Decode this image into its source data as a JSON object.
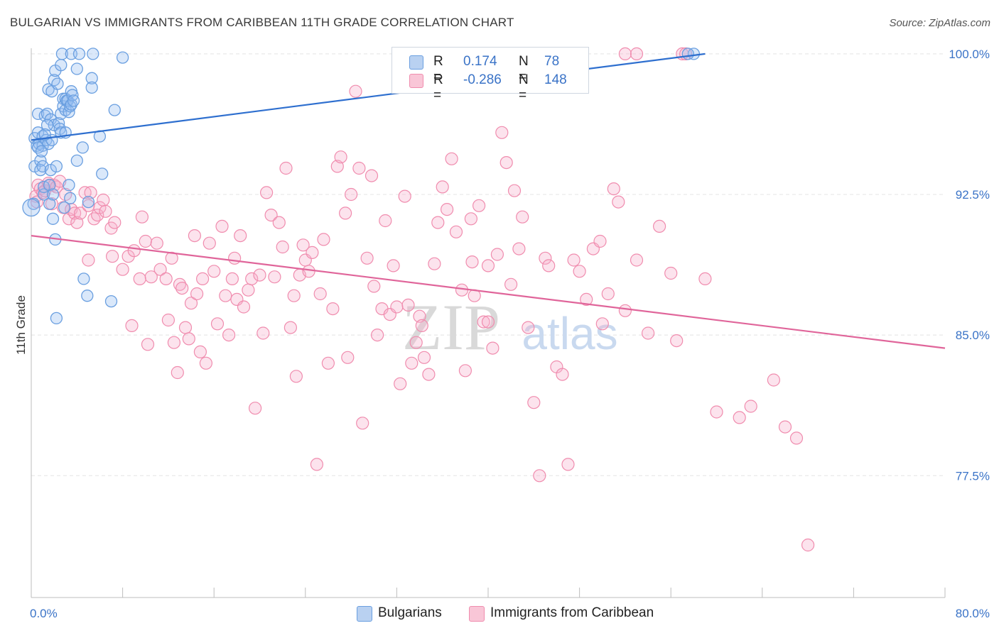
{
  "title": "BULGARIAN VS IMMIGRANTS FROM CARIBBEAN 11TH GRADE CORRELATION CHART",
  "source": "Source: ZipAtlas.com",
  "watermark": {
    "zip": "ZIP",
    "atlas": "atlas"
  },
  "legend": {
    "r_label": "R =",
    "n_label": "N =",
    "rows": [
      {
        "r": "0.174",
        "n": "78"
      },
      {
        "r": "-0.286",
        "n": "148"
      }
    ]
  },
  "chart_data": {
    "type": "scatter",
    "title": "BULGARIAN VS IMMIGRANTS FROM CARIBBEAN 11TH GRADE CORRELATION CHART",
    "xlabel": "",
    "ylabel": "11th Grade",
    "xlim": [
      0,
      80
    ],
    "ylim": [
      71.0,
      100.6
    ],
    "x_tick_labels": [
      "0.0%",
      "80.0%"
    ],
    "y_ticks": [
      77.5,
      85.0,
      92.5,
      100.0
    ],
    "y_tick_labels": [
      "77.5%",
      "85.0%",
      "92.5%",
      "100.0%"
    ],
    "grid": true,
    "legend_position": "top-center",
    "colors": {
      "blue": "#6a9fe0",
      "pink": "#f08cae",
      "blue_line": "#2e6fcf",
      "pink_line": "#e0659a",
      "tick_text": "#3a73c7"
    },
    "series": [
      {
        "name": "Bulgarians",
        "R": 0.174,
        "N": 78,
        "trend": {
          "x": [
            0,
            59
          ],
          "y": [
            95.4,
            100.0
          ]
        },
        "points": [
          [
            0.3,
            95.5
          ],
          [
            0.3,
            94.0
          ],
          [
            0.5,
            95.1
          ],
          [
            0.6,
            96.8
          ],
          [
            0.6,
            95.8
          ],
          [
            0.7,
            95.2
          ],
          [
            0.8,
            94.3
          ],
          [
            0.8,
            93.8
          ],
          [
            1.0,
            95.6
          ],
          [
            1.0,
            95.1
          ],
          [
            1.0,
            94.0
          ],
          [
            1.1,
            92.5
          ],
          [
            1.1,
            92.9
          ],
          [
            1.2,
            96.7
          ],
          [
            1.3,
            95.4
          ],
          [
            1.4,
            96.8
          ],
          [
            1.5,
            98.1
          ],
          [
            1.5,
            95.2
          ],
          [
            1.6,
            92.0
          ],
          [
            1.6,
            93.0
          ],
          [
            1.7,
            96.5
          ],
          [
            1.7,
            93.8
          ],
          [
            1.8,
            98.0
          ],
          [
            1.8,
            95.4
          ],
          [
            1.9,
            91.2
          ],
          [
            1.9,
            92.5
          ],
          [
            2.0,
            98.6
          ],
          [
            2.0,
            96.2
          ],
          [
            2.1,
            99.1
          ],
          [
            2.1,
            90.1
          ],
          [
            2.2,
            85.9
          ],
          [
            2.3,
            98.4
          ],
          [
            2.4,
            96.3
          ],
          [
            2.5,
            96.0
          ],
          [
            2.6,
            99.4
          ],
          [
            2.6,
            96.8
          ],
          [
            2.6,
            95.8
          ],
          [
            2.7,
            100.0
          ],
          [
            2.8,
            97.6
          ],
          [
            2.8,
            97.2
          ],
          [
            2.9,
            91.8
          ],
          [
            3.0,
            97.0
          ],
          [
            3.0,
            97.6
          ],
          [
            3.1,
            97.5
          ],
          [
            3.2,
            97.5
          ],
          [
            3.3,
            93.0
          ],
          [
            3.3,
            96.9
          ],
          [
            3.4,
            97.2
          ],
          [
            3.4,
            92.3
          ],
          [
            3.5,
            97.3
          ],
          [
            3.5,
            100.0
          ],
          [
            3.5,
            98.0
          ],
          [
            3.6,
            97.8
          ],
          [
            3.7,
            97.5
          ],
          [
            4.0,
            99.2
          ],
          [
            4.0,
            94.3
          ],
          [
            4.2,
            100.0
          ],
          [
            4.5,
            95.0
          ],
          [
            4.6,
            88.0
          ],
          [
            4.9,
            87.1
          ],
          [
            5.0,
            92.1
          ],
          [
            5.3,
            98.7
          ],
          [
            5.3,
            98.2
          ],
          [
            5.4,
            100.0
          ],
          [
            6.0,
            95.6
          ],
          [
            6.2,
            93.6
          ],
          [
            7.0,
            86.8
          ],
          [
            7.3,
            97.0
          ],
          [
            8.0,
            99.8
          ],
          [
            0.2,
            92.0
          ],
          [
            0.6,
            95.0
          ],
          [
            1.4,
            96.2
          ],
          [
            2.2,
            94.0
          ],
          [
            3.0,
            95.8
          ],
          [
            58.0,
            100.0
          ],
          [
            57.5,
            100.0
          ],
          [
            0.9,
            94.8
          ],
          [
            1.2,
            95.7
          ]
        ]
      },
      {
        "name": "Immigrants from Caribbean",
        "R": -0.286,
        "N": 148,
        "trend": {
          "x": [
            0,
            80
          ],
          "y": [
            90.3,
            84.3
          ]
        },
        "points": [
          [
            0.4,
            92.4
          ],
          [
            0.5,
            92.1
          ],
          [
            0.6,
            93.0
          ],
          [
            0.8,
            92.8
          ],
          [
            1.0,
            92.6
          ],
          [
            1.2,
            92.7
          ],
          [
            1.5,
            93.1
          ],
          [
            1.6,
            93.0
          ],
          [
            1.8,
            92.0
          ],
          [
            2.0,
            93.0
          ],
          [
            2.2,
            92.9
          ],
          [
            2.5,
            93.2
          ],
          [
            2.8,
            91.8
          ],
          [
            3.0,
            92.5
          ],
          [
            3.3,
            91.2
          ],
          [
            3.5,
            91.7
          ],
          [
            3.8,
            91.5
          ],
          [
            4.0,
            91.0
          ],
          [
            4.3,
            91.5
          ],
          [
            4.7,
            92.6
          ],
          [
            5.0,
            91.9
          ],
          [
            5.0,
            89.0
          ],
          [
            5.2,
            92.6
          ],
          [
            5.5,
            91.2
          ],
          [
            5.8,
            91.4
          ],
          [
            6.0,
            91.8
          ],
          [
            6.3,
            92.2
          ],
          [
            6.5,
            91.6
          ],
          [
            7.0,
            90.7
          ],
          [
            7.1,
            89.2
          ],
          [
            7.3,
            91.0
          ],
          [
            8.0,
            88.5
          ],
          [
            8.5,
            89.2
          ],
          [
            8.8,
            85.5
          ],
          [
            9.0,
            89.5
          ],
          [
            9.5,
            88.0
          ],
          [
            9.7,
            91.3
          ],
          [
            10.0,
            90.0
          ],
          [
            10.2,
            84.5
          ],
          [
            10.5,
            88.1
          ],
          [
            11.0,
            89.9
          ],
          [
            11.3,
            88.5
          ],
          [
            11.8,
            88.0
          ],
          [
            12.0,
            85.8
          ],
          [
            12.3,
            89.1
          ],
          [
            12.5,
            84.6
          ],
          [
            12.8,
            83.0
          ],
          [
            13.0,
            87.7
          ],
          [
            13.2,
            87.5
          ],
          [
            13.5,
            85.4
          ],
          [
            13.8,
            84.8
          ],
          [
            14.0,
            86.7
          ],
          [
            14.3,
            90.3
          ],
          [
            14.5,
            87.2
          ],
          [
            14.8,
            84.1
          ],
          [
            15.0,
            88.0
          ],
          [
            15.3,
            83.5
          ],
          [
            15.6,
            89.9
          ],
          [
            16.0,
            88.4
          ],
          [
            16.3,
            85.6
          ],
          [
            16.7,
            90.8
          ],
          [
            17.0,
            87.1
          ],
          [
            17.3,
            85.0
          ],
          [
            17.6,
            88.0
          ],
          [
            17.8,
            89.1
          ],
          [
            18.0,
            86.9
          ],
          [
            18.3,
            90.3
          ],
          [
            18.6,
            86.5
          ],
          [
            19.0,
            87.4
          ],
          [
            19.3,
            88.0
          ],
          [
            19.6,
            81.1
          ],
          [
            20.0,
            88.2
          ],
          [
            20.3,
            85.1
          ],
          [
            20.6,
            92.6
          ],
          [
            21.0,
            91.4
          ],
          [
            21.3,
            88.1
          ],
          [
            21.7,
            91.0
          ],
          [
            22.0,
            89.7
          ],
          [
            22.3,
            93.9
          ],
          [
            22.7,
            85.4
          ],
          [
            23.0,
            87.1
          ],
          [
            23.2,
            82.8
          ],
          [
            23.5,
            88.2
          ],
          [
            23.8,
            89.8
          ],
          [
            24.0,
            89.0
          ],
          [
            24.3,
            88.4
          ],
          [
            24.6,
            89.4
          ],
          [
            25.0,
            78.1
          ],
          [
            25.3,
            87.2
          ],
          [
            25.6,
            90.1
          ],
          [
            26.0,
            83.5
          ],
          [
            26.4,
            86.4
          ],
          [
            26.8,
            94.0
          ],
          [
            27.1,
            94.5
          ],
          [
            27.5,
            91.5
          ],
          [
            27.7,
            83.8
          ],
          [
            28.0,
            92.5
          ],
          [
            28.4,
            98.0
          ],
          [
            28.7,
            93.9
          ],
          [
            29.0,
            80.3
          ],
          [
            29.4,
            89.1
          ],
          [
            29.8,
            93.5
          ],
          [
            30.0,
            87.6
          ],
          [
            30.3,
            85.0
          ],
          [
            30.7,
            86.4
          ],
          [
            31.0,
            91.1
          ],
          [
            31.4,
            86.1
          ],
          [
            31.7,
            88.7
          ],
          [
            32.0,
            86.5
          ],
          [
            32.3,
            82.4
          ],
          [
            32.7,
            92.4
          ],
          [
            33.0,
            86.6
          ],
          [
            33.3,
            83.5
          ],
          [
            33.7,
            84.6
          ],
          [
            34.0,
            86.0
          ],
          [
            34.4,
            83.8
          ],
          [
            34.8,
            82.9
          ],
          [
            35.3,
            88.8
          ],
          [
            35.6,
            91.0
          ],
          [
            36.0,
            92.9
          ],
          [
            36.4,
            91.7
          ],
          [
            36.8,
            94.4
          ],
          [
            37.2,
            90.5
          ],
          [
            37.7,
            87.4
          ],
          [
            38.0,
            83.1
          ],
          [
            38.5,
            91.2
          ],
          [
            38.8,
            87.1
          ],
          [
            39.2,
            91.9
          ],
          [
            39.6,
            85.7
          ],
          [
            40.0,
            88.7
          ],
          [
            40.4,
            84.3
          ],
          [
            40.8,
            89.3
          ],
          [
            41.2,
            95.8
          ],
          [
            41.6,
            94.2
          ],
          [
            42.0,
            87.7
          ],
          [
            42.3,
            92.7
          ],
          [
            42.7,
            89.6
          ],
          [
            43.0,
            91.3
          ],
          [
            43.5,
            85.4
          ],
          [
            44.0,
            81.4
          ],
          [
            44.5,
            77.5
          ],
          [
            45.0,
            89.1
          ],
          [
            45.3,
            88.7
          ],
          [
            46.0,
            83.3
          ],
          [
            46.5,
            82.9
          ],
          [
            47.0,
            78.1
          ],
          [
            47.5,
            89.0
          ],
          [
            48.0,
            88.4
          ],
          [
            48.6,
            86.9
          ],
          [
            49.2,
            89.6
          ],
          [
            49.8,
            90.0
          ],
          [
            50.0,
            85.6
          ],
          [
            50.5,
            87.2
          ],
          [
            51.0,
            92.8
          ],
          [
            51.4,
            92.1
          ],
          [
            52.0,
            86.3
          ],
          [
            53.0,
            89.0
          ],
          [
            54.0,
            85.1
          ],
          [
            55.0,
            90.8
          ],
          [
            56.0,
            88.3
          ],
          [
            56.5,
            84.7
          ],
          [
            57.0,
            100.0
          ],
          [
            57.3,
            100.0
          ],
          [
            59.0,
            88.0
          ],
          [
            60.0,
            80.9
          ],
          [
            62.0,
            80.6
          ],
          [
            63.0,
            81.2
          ],
          [
            65.0,
            82.6
          ],
          [
            66.0,
            80.1
          ],
          [
            67.0,
            79.5
          ],
          [
            68.0,
            73.8
          ],
          [
            52.0,
            100.0
          ],
          [
            53.0,
            100.0
          ],
          [
            38.6,
            88.9
          ],
          [
            40.0,
            85.7
          ],
          [
            34.2,
            85.5
          ]
        ]
      }
    ]
  },
  "bottom_legend": [
    {
      "label": "Bulgarians"
    },
    {
      "label": "Immigrants from Caribbean"
    }
  ]
}
